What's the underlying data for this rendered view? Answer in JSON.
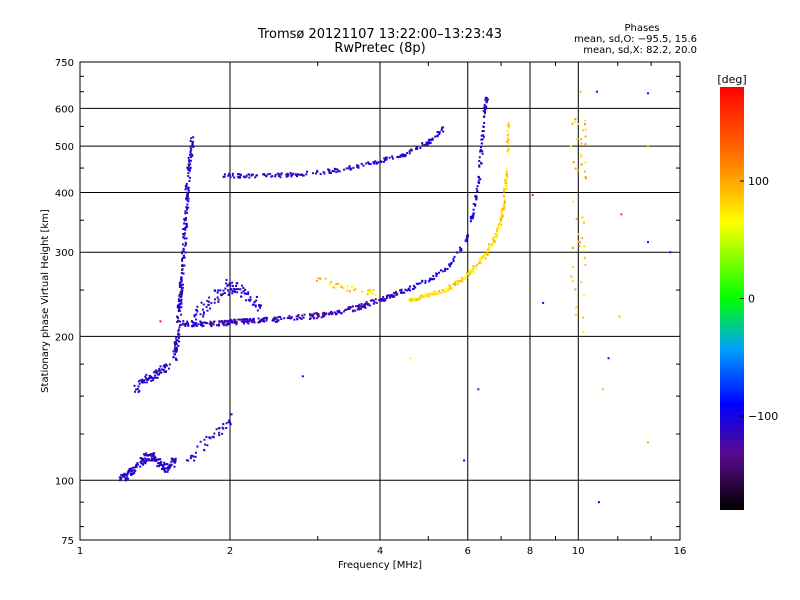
{
  "chart_data": {
    "type": "scatter",
    "title": "Tromsø 20121107 13:22:00–13:23:43",
    "subtitle": "RwPretec (8p)",
    "xlabel": "Frequency [MHz]",
    "ylabel": "Stationary phase Virtual Height [km]",
    "x_scale": "log",
    "y_scale": "log",
    "xlim": [
      1,
      16
    ],
    "ylim": [
      75,
      750
    ],
    "x_ticks": [
      1,
      2,
      4,
      6,
      8,
      10,
      16
    ],
    "x_tick_labels": [
      "1",
      "2",
      "4",
      "6",
      "8",
      "10",
      "16"
    ],
    "y_ticks": [
      75,
      100,
      200,
      300,
      400,
      500,
      600,
      750
    ],
    "y_tick_labels": [
      "75",
      "100",
      "200",
      "300",
      "400",
      "500",
      "600",
      "750"
    ],
    "grid": true,
    "phases_note": {
      "heading": "Phases",
      "line_o": "mean, sd,O: −95.5, 15.6",
      "line_x": "mean, sd,X: 82.2, 20.0"
    },
    "colorbar": {
      "label": "[deg]",
      "range": [
        -180,
        180
      ],
      "ticks": [
        100,
        0,
        -100
      ],
      "tick_labels": [
        "100",
        "0",
        "−100"
      ]
    },
    "traces": [
      {
        "x": [
          1.2,
          1.25,
          1.3,
          1.35,
          1.4,
          1.45,
          1.5,
          1.55
        ],
        "y": [
          100,
          103,
          107,
          111,
          113,
          108,
          105,
          110
        ],
        "phase": -110,
        "spread": 0.04,
        "n": 25
      },
      {
        "x": [
          1.65,
          1.75,
          1.85,
          1.95,
          2.0
        ],
        "y": [
          110,
          118,
          125,
          128,
          135
        ],
        "phase": -110,
        "spread": 0.05,
        "n": 10
      },
      {
        "x": [
          1.3,
          1.35,
          1.4,
          1.45,
          1.5
        ],
        "y": [
          155,
          162,
          165,
          170,
          172
        ],
        "phase": -110,
        "spread": 0.04,
        "n": 18
      },
      {
        "x": [
          1.55,
          1.57,
          1.59,
          1.61,
          1.63,
          1.65,
          1.68
        ],
        "y": [
          180,
          200,
          240,
          280,
          350,
          440,
          520
        ],
        "phase": -110,
        "spread": 0.03,
        "n": 35
      },
      {
        "x": [
          1.6,
          1.8,
          2.0,
          2.2,
          2.5,
          3.0,
          3.5,
          4.0,
          4.5
        ],
        "y": [
          213,
          212,
          214,
          215,
          217,
          221,
          228,
          238,
          250
        ],
        "phase": -115,
        "spread": 0.025,
        "n": 40
      },
      {
        "x": [
          1.7,
          1.85,
          2.0,
          2.15,
          2.3
        ],
        "y": [
          220,
          240,
          255,
          245,
          230
        ],
        "phase": -110,
        "spread": 0.06,
        "n": 25
      },
      {
        "x": [
          4.5,
          5.0,
          5.5,
          6.0,
          6.2,
          6.35
        ],
        "y": [
          250,
          262,
          280,
          320,
          380,
          440
        ],
        "phase": -100,
        "spread": 0.02,
        "n": 20
      },
      {
        "x": [
          6.35,
          6.4,
          6.45,
          6.5,
          6.55
        ],
        "y": [
          450,
          500,
          550,
          600,
          630
        ],
        "phase": -105,
        "spread": 0.02,
        "n": 12
      },
      {
        "x": [
          4.6,
          5.0,
          5.5,
          6.0,
          6.5,
          6.9,
          7.1,
          7.2
        ],
        "y": [
          238,
          244,
          252,
          268,
          295,
          330,
          380,
          450
        ],
        "phase": 80,
        "spread": 0.02,
        "n": 28
      },
      {
        "x": [
          7.2,
          7.22,
          7.25
        ],
        "y": [
          480,
          520,
          560
        ],
        "phase": 85,
        "spread": 0.02,
        "n": 8
      },
      {
        "x": [
          3.0,
          3.3,
          3.6,
          4.0
        ],
        "y": [
          265,
          255,
          250,
          245
        ],
        "phase": 80,
        "spread": 0.03,
        "n": 10
      },
      {
        "x": [
          1.95,
          2.2,
          2.6,
          3.0,
          3.5,
          4.0,
          4.5,
          5.0,
          5.4
        ],
        "y": [
          435,
          432,
          435,
          440,
          450,
          465,
          480,
          510,
          545
        ],
        "phase": -110,
        "spread": 0.02,
        "n": 25
      },
      {
        "x": [
          10,
          10,
          10,
          10,
          10
        ],
        "y": [
          200,
          300,
          400,
          500,
          600
        ],
        "phase": 90,
        "spread": 0.12,
        "n": 12
      }
    ],
    "scattered_points": [
      {
        "x": 2.8,
        "y": 165,
        "phase": -100
      },
      {
        "x": 5.9,
        "y": 110,
        "phase": -100
      },
      {
        "x": 4.6,
        "y": 180,
        "phase": 60
      },
      {
        "x": 10.9,
        "y": 650,
        "phase": -110
      },
      {
        "x": 11.0,
        "y": 90,
        "phase": -90
      },
      {
        "x": 13.8,
        "y": 645,
        "phase": -110
      },
      {
        "x": 13.8,
        "y": 500,
        "phase": 100
      },
      {
        "x": 13.8,
        "y": 315,
        "phase": -110
      },
      {
        "x": 13.8,
        "y": 120,
        "phase": 20
      },
      {
        "x": 12.2,
        "y": 360,
        "phase": 150
      },
      {
        "x": 12.1,
        "y": 220,
        "phase": 90
      },
      {
        "x": 11.5,
        "y": 180,
        "phase": -110
      },
      {
        "x": 8.1,
        "y": 395,
        "phase": 160
      },
      {
        "x": 8.5,
        "y": 235,
        "phase": -110
      },
      {
        "x": 11.2,
        "y": 155,
        "phase": 90
      },
      {
        "x": 15.3,
        "y": 300,
        "phase": -110
      },
      {
        "x": 1.45,
        "y": 215,
        "phase": 170
      },
      {
        "x": 6.3,
        "y": 155,
        "phase": -80
      },
      {
        "x": 10.1,
        "y": 650,
        "phase": 90
      }
    ]
  }
}
